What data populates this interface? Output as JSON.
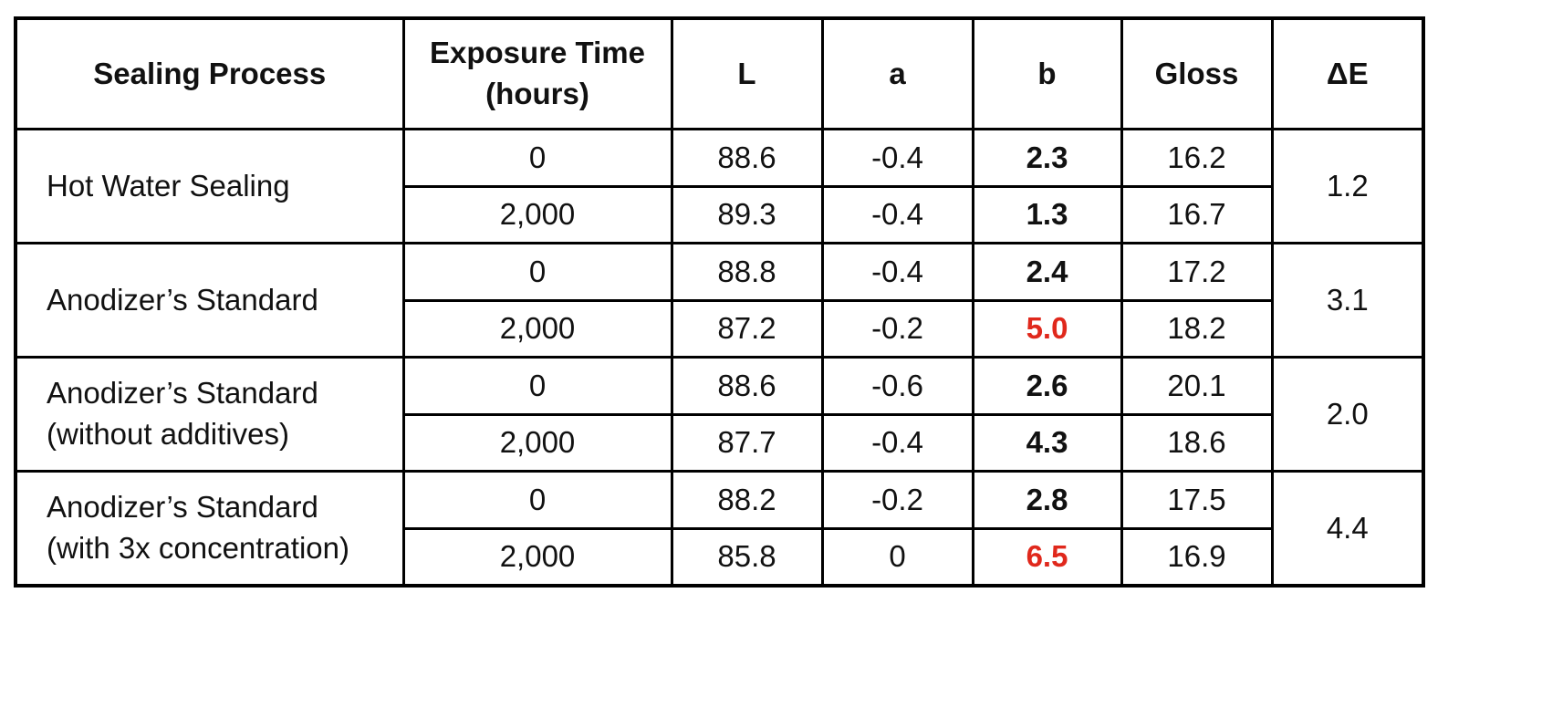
{
  "colors": {
    "border": "#000000",
    "text": "#111111",
    "highlight": "#e0281c"
  },
  "headers": {
    "process": "Sealing Process",
    "time_line1": "Exposure Time",
    "time_line2": "(hours)",
    "l": "L",
    "a": "a",
    "b": "b",
    "gloss": "Gloss",
    "delta_e": "ΔE"
  },
  "groups": [
    {
      "process_line1": "Hot Water Sealing",
      "process_line2": "",
      "delta_e": "1.2",
      "rows": [
        {
          "time": "0",
          "l": "88.6",
          "a": "-0.4",
          "b": "2.3",
          "b_highlight": false,
          "gloss": "16.2"
        },
        {
          "time": "2,000",
          "l": "89.3",
          "a": "-0.4",
          "b": "1.3",
          "b_highlight": false,
          "gloss": "16.7"
        }
      ]
    },
    {
      "process_line1": "Anodizer’s Standard",
      "process_line2": "",
      "delta_e": "3.1",
      "rows": [
        {
          "time": "0",
          "l": "88.8",
          "a": "-0.4",
          "b": "2.4",
          "b_highlight": false,
          "gloss": "17.2"
        },
        {
          "time": "2,000",
          "l": "87.2",
          "a": "-0.2",
          "b": "5.0",
          "b_highlight": true,
          "gloss": "18.2"
        }
      ]
    },
    {
      "process_line1": "Anodizer’s Standard",
      "process_line2": "(without additives)",
      "delta_e": "2.0",
      "rows": [
        {
          "time": "0",
          "l": "88.6",
          "a": "-0.6",
          "b": "2.6",
          "b_highlight": false,
          "gloss": "20.1"
        },
        {
          "time": "2,000",
          "l": "87.7",
          "a": "-0.4",
          "b": "4.3",
          "b_highlight": false,
          "gloss": "18.6"
        }
      ]
    },
    {
      "process_line1": "Anodizer’s Standard",
      "process_line2": "(with 3x concentration)",
      "delta_e": "4.4",
      "rows": [
        {
          "time": "0",
          "l": "88.2",
          "a": "-0.2",
          "b": "2.8",
          "b_highlight": false,
          "gloss": "17.5"
        },
        {
          "time": "2,000",
          "l": "85.8",
          "a": "0",
          "b": "6.5",
          "b_highlight": true,
          "gloss": "16.9"
        }
      ]
    }
  ]
}
